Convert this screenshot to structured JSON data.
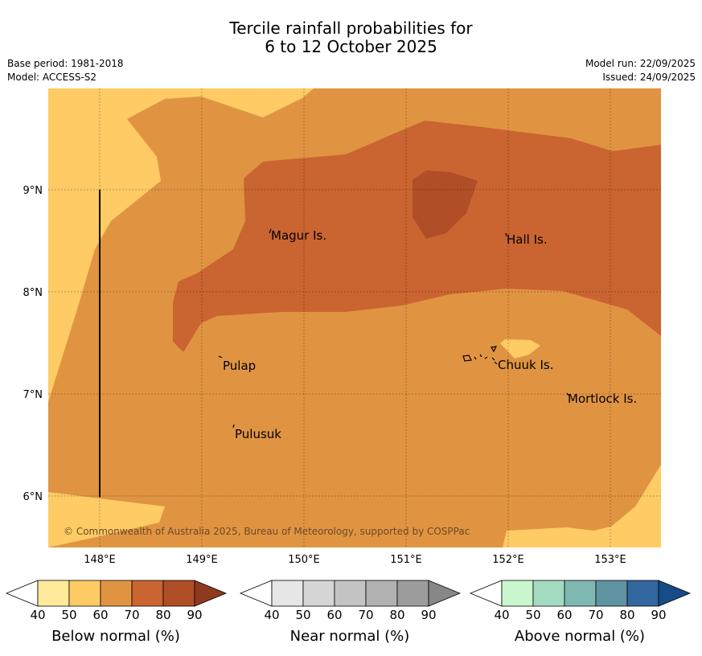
{
  "title": {
    "line1": "Tercile rainfall probabilities for",
    "line2": "6 to 12 October 2025"
  },
  "meta": {
    "base_period": "Base period: 1981-2018",
    "model": "Model: ACCESS-S2",
    "model_run": "Model run: 22/09/2025",
    "issued": "Issued: 24/09/2025"
  },
  "map": {
    "lon_labels": [
      "148°E",
      "149°E",
      "150°E",
      "151°E",
      "152°E",
      "153°E"
    ],
    "lat_labels": [
      "9°N",
      "8°N",
      "7°N",
      "6°N"
    ],
    "places": [
      "Magur Is.",
      "Hall Is.",
      "Pulap",
      "Chuuk Is.",
      "Mortlock Is.",
      "Pulusuk"
    ],
    "copyright": "© Commonwealth of Australia 2025, Bureau of Meteorology, supported by COSPPac",
    "colors": {
      "p50": "#fecb65",
      "p60": "#e09442",
      "p70": "#ca6431",
      "p80": "#b04e27"
    }
  },
  "legends": {
    "ticks": [
      "40",
      "50",
      "60",
      "70",
      "80",
      "90"
    ],
    "below": {
      "title": "Below normal (%)",
      "colors": [
        "#ffffff",
        "#feea9a",
        "#fecb65",
        "#e09442",
        "#ca6431",
        "#b04e27",
        "#8f3a1f"
      ]
    },
    "near": {
      "title": "Near normal (%)",
      "colors": [
        "#ffffff",
        "#e6e6e6",
        "#d5d5d5",
        "#c4c4c4",
        "#b1b1b1",
        "#9c9c9c",
        "#878787"
      ]
    },
    "above": {
      "title": "Above normal (%)",
      "colors": [
        "#ffffff",
        "#c9f6cc",
        "#a3dbc1",
        "#7fb7b2",
        "#5f93a2",
        "#3267a0",
        "#174c87"
      ]
    }
  }
}
